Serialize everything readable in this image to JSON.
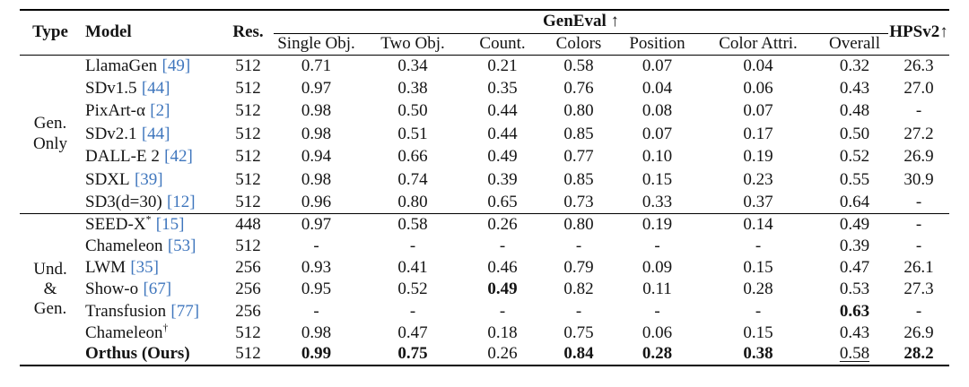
{
  "colors": {
    "background": "#ffffff",
    "text": "#141414",
    "rule": "#000000",
    "citation_link": "#3f76bd"
  },
  "table": {
    "headers": {
      "type": "Type",
      "model": "Model",
      "res": "Res.",
      "geneval_group": "GenEval ↑",
      "geneval_cols": [
        "Single Obj.",
        "Two Obj.",
        "Count.",
        "Colors",
        "Position",
        "Color Attri.",
        "Overall"
      ],
      "hpsv2": "HPSv2↑"
    },
    "groups": [
      {
        "type_lines": [
          "Gen.",
          "Only"
        ],
        "rows": [
          {
            "model": "LlamaGen",
            "cite": "[49]",
            "res": "512",
            "cells": [
              {
                "t": "0.71"
              },
              {
                "t": "0.34"
              },
              {
                "t": "0.21"
              },
              {
                "t": "0.58"
              },
              {
                "t": "0.07"
              },
              {
                "t": "0.04"
              },
              {
                "t": "0.32"
              }
            ],
            "hpsv2": {
              "t": "26.3"
            }
          },
          {
            "model": "SDv1.5",
            "cite": "[44]",
            "res": "512",
            "cells": [
              {
                "t": "0.97"
              },
              {
                "t": "0.38"
              },
              {
                "t": "0.35"
              },
              {
                "t": "0.76"
              },
              {
                "t": "0.04"
              },
              {
                "t": "0.06"
              },
              {
                "t": "0.43"
              }
            ],
            "hpsv2": {
              "t": "27.0"
            }
          },
          {
            "model": "PixArt-α",
            "cite": "[2]",
            "res": "512",
            "cells": [
              {
                "t": "0.98"
              },
              {
                "t": "0.50"
              },
              {
                "t": "0.44"
              },
              {
                "t": "0.80"
              },
              {
                "t": "0.08"
              },
              {
                "t": "0.07"
              },
              {
                "t": "0.48"
              }
            ],
            "hpsv2": {
              "t": "-"
            }
          },
          {
            "model": "SDv2.1",
            "cite": "[44]",
            "res": "512",
            "cells": [
              {
                "t": "0.98"
              },
              {
                "t": "0.51"
              },
              {
                "t": "0.44"
              },
              {
                "t": "0.85"
              },
              {
                "t": "0.07"
              },
              {
                "t": "0.17"
              },
              {
                "t": "0.50"
              }
            ],
            "hpsv2": {
              "t": "27.2"
            }
          },
          {
            "model": "DALL-E 2",
            "cite": "[42]",
            "res": "512",
            "cells": [
              {
                "t": "0.94"
              },
              {
                "t": "0.66"
              },
              {
                "t": "0.49"
              },
              {
                "t": "0.77"
              },
              {
                "t": "0.10"
              },
              {
                "t": "0.19"
              },
              {
                "t": "0.52"
              }
            ],
            "hpsv2": {
              "t": "26.9"
            }
          },
          {
            "model": "SDXL",
            "cite": "[39]",
            "res": "512",
            "cells": [
              {
                "t": "0.98"
              },
              {
                "t": "0.74"
              },
              {
                "t": "0.39"
              },
              {
                "t": "0.85"
              },
              {
                "t": "0.15"
              },
              {
                "t": "0.23"
              },
              {
                "t": "0.55"
              }
            ],
            "hpsv2": {
              "t": "30.9"
            }
          },
          {
            "model": "SD3(d=30)",
            "cite": "[12]",
            "res": "512",
            "cells": [
              {
                "t": "0.96"
              },
              {
                "t": "0.80"
              },
              {
                "t": "0.65"
              },
              {
                "t": "0.73"
              },
              {
                "t": "0.33"
              },
              {
                "t": "0.37"
              },
              {
                "t": "0.64"
              }
            ],
            "hpsv2": {
              "t": "-"
            }
          }
        ]
      },
      {
        "type_lines": [
          "Und.",
          "&",
          "Gen."
        ],
        "rows": [
          {
            "model": "SEED-X",
            "sup": "*",
            "cite": "[15]",
            "res": "448",
            "cells": [
              {
                "t": "0.97"
              },
              {
                "t": "0.58"
              },
              {
                "t": "0.26"
              },
              {
                "t": "0.80"
              },
              {
                "t": "0.19"
              },
              {
                "t": "0.14"
              },
              {
                "t": "0.49"
              }
            ],
            "hpsv2": {
              "t": "-"
            }
          },
          {
            "model": "Chameleon",
            "cite": "[53]",
            "res": "512",
            "cells": [
              {
                "t": "-"
              },
              {
                "t": "-"
              },
              {
                "t": "-"
              },
              {
                "t": "-"
              },
              {
                "t": "-"
              },
              {
                "t": "-"
              },
              {
                "t": "0.39"
              }
            ],
            "hpsv2": {
              "t": "-"
            }
          },
          {
            "model": "LWM",
            "cite": "[35]",
            "res": "256",
            "cells": [
              {
                "t": "0.93"
              },
              {
                "t": "0.41"
              },
              {
                "t": "0.46"
              },
              {
                "t": "0.79"
              },
              {
                "t": "0.09"
              },
              {
                "t": "0.15"
              },
              {
                "t": "0.47"
              }
            ],
            "hpsv2": {
              "t": "26.1"
            }
          },
          {
            "model": "Show-o",
            "cite": "[67]",
            "res": "256",
            "cells": [
              {
                "t": "0.95"
              },
              {
                "t": "0.52"
              },
              {
                "t": "0.49",
                "b": true
              },
              {
                "t": "0.82"
              },
              {
                "t": "0.11"
              },
              {
                "t": "0.28"
              },
              {
                "t": "0.53"
              }
            ],
            "hpsv2": {
              "t": "27.3"
            }
          },
          {
            "model": "Transfusion",
            "cite": "[77]",
            "res": "256",
            "cells": [
              {
                "t": "-"
              },
              {
                "t": "-"
              },
              {
                "t": "-"
              },
              {
                "t": "-"
              },
              {
                "t": "-"
              },
              {
                "t": "-"
              },
              {
                "t": "0.63",
                "b": true
              }
            ],
            "hpsv2": {
              "t": "-"
            }
          },
          {
            "model": "Chameleon",
            "sup": "†",
            "res": "512",
            "cells": [
              {
                "t": "0.98"
              },
              {
                "t": "0.47"
              },
              {
                "t": "0.18"
              },
              {
                "t": "0.75"
              },
              {
                "t": "0.06"
              },
              {
                "t": "0.15"
              },
              {
                "t": "0.43"
              }
            ],
            "hpsv2": {
              "t": "26.9"
            }
          },
          {
            "model": "Orthus (Ours)",
            "bold": true,
            "res": "512",
            "cells": [
              {
                "t": "0.99",
                "b": true
              },
              {
                "t": "0.75",
                "b": true
              },
              {
                "t": "0.26"
              },
              {
                "t": "0.84",
                "b": true
              },
              {
                "t": "0.28",
                "b": true
              },
              {
                "t": "0.38",
                "b": true
              },
              {
                "t": "0.58",
                "u": true
              }
            ],
            "hpsv2": {
              "t": "28.2",
              "b": true
            }
          }
        ]
      }
    ]
  }
}
